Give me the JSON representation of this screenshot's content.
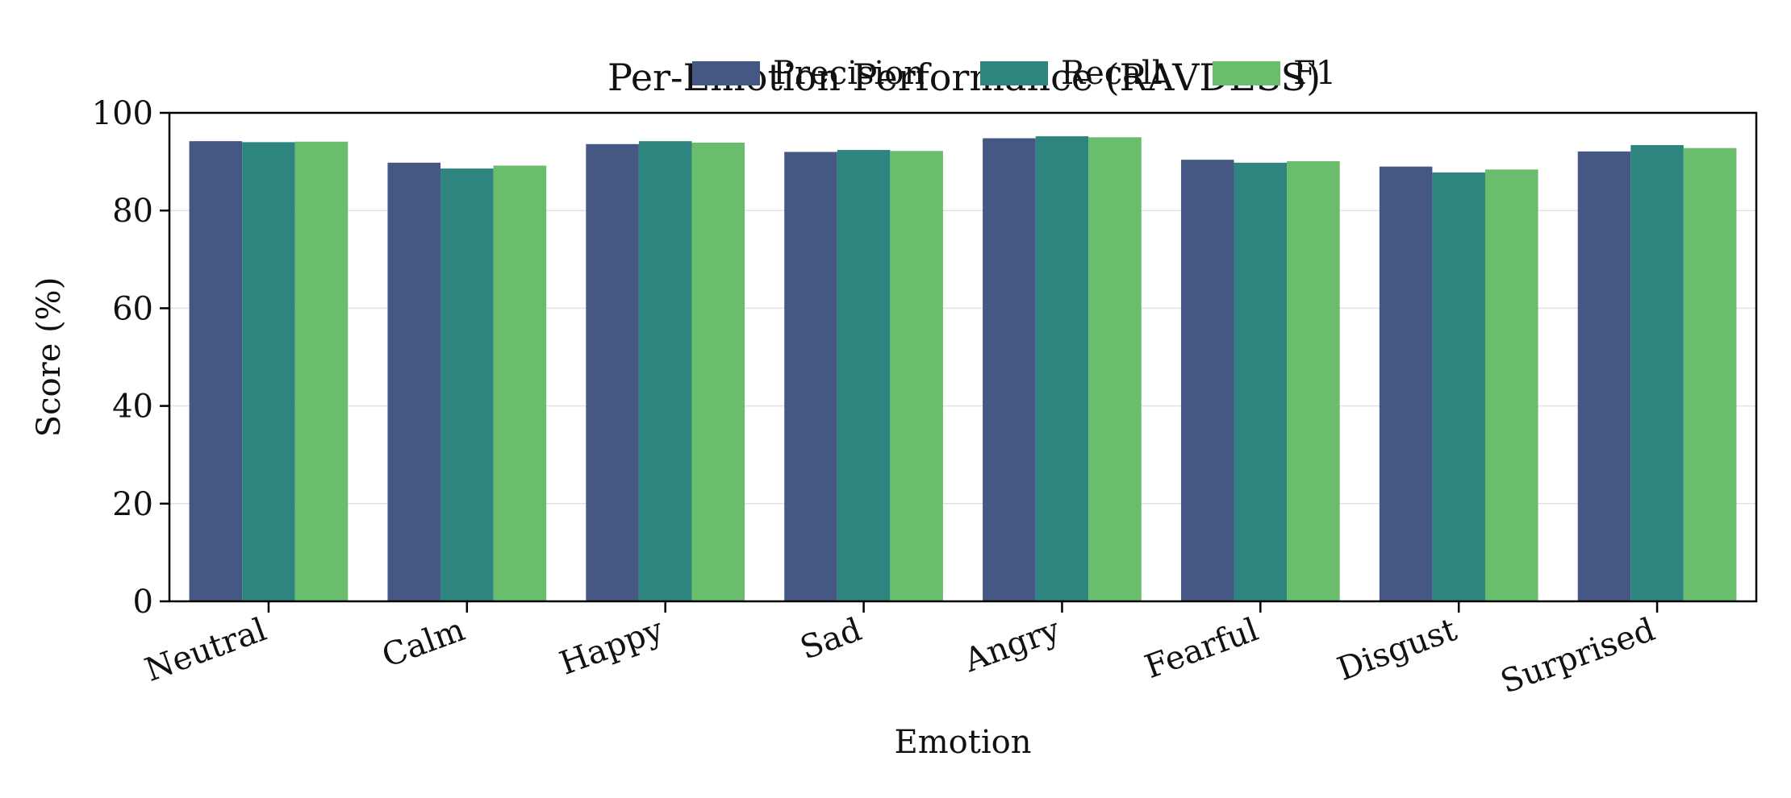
{
  "chart_data": {
    "type": "bar",
    "title": "Per-Emotion Performance (RAVDESS)",
    "xlabel": "Emotion",
    "ylabel": "Score (%)",
    "ylim": [
      0,
      100
    ],
    "yticks": [
      0,
      20,
      40,
      60,
      80,
      100
    ],
    "grid": true,
    "legend": {
      "placement": "top-center",
      "columns": 3
    },
    "categories": [
      "Neutral",
      "Calm",
      "Happy",
      "Sad",
      "Angry",
      "Fearful",
      "Disgust",
      "Surprised"
    ],
    "series": [
      {
        "name": "Precision",
        "color": "#455883",
        "values": [
          94.2,
          89.8,
          93.6,
          92.0,
          94.8,
          90.4,
          89.0,
          92.1
        ]
      },
      {
        "name": "Recall",
        "color": "#2e847e",
        "values": [
          94.0,
          88.6,
          94.2,
          92.4,
          95.2,
          89.8,
          87.8,
          93.4
        ]
      },
      {
        "name": "F1",
        "color": "#6abd6d",
        "values": [
          94.1,
          89.2,
          93.9,
          92.2,
          95.0,
          90.1,
          88.4,
          92.8
        ]
      }
    ]
  }
}
